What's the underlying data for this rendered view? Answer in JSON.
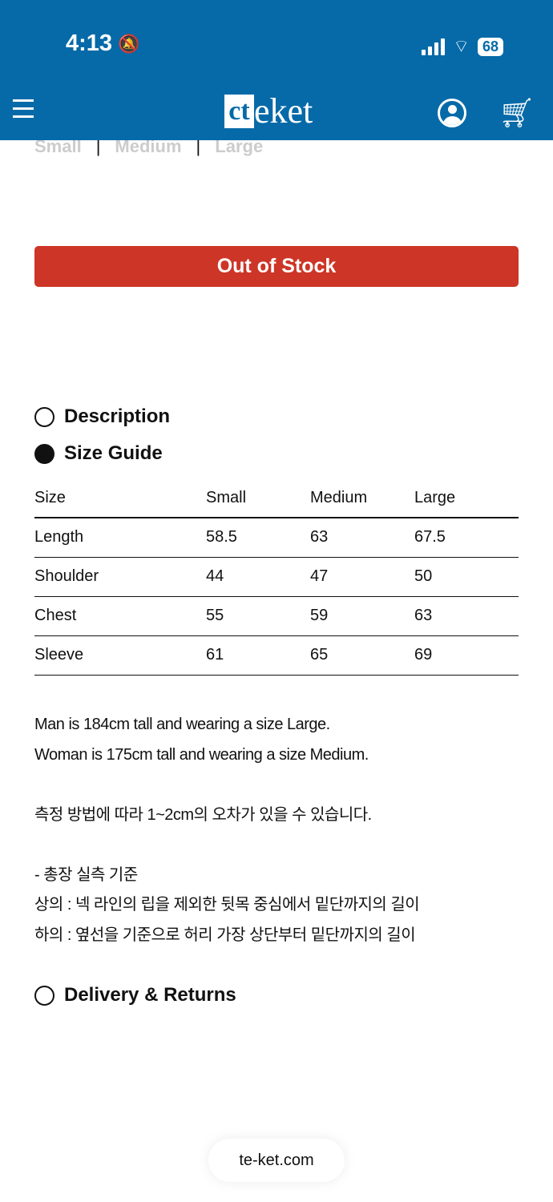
{
  "status_bar": {
    "time": "4:13",
    "battery": "68"
  },
  "header": {
    "logo_mark": "ct",
    "logo_text": "eket",
    "icons": [
      "menu-icon",
      "user-icon",
      "cart-icon"
    ]
  },
  "size_options": [
    "Small",
    "Medium",
    "Large"
  ],
  "out_of_stock": "Out of Stock",
  "accordion": [
    {
      "label": "Description",
      "open": false
    },
    {
      "label": "Size Guide",
      "open": true
    },
    {
      "label": "Delivery & Returns",
      "open": false
    }
  ],
  "size_table": {
    "headers": [
      "Size",
      "Small",
      "Medium",
      "Large"
    ],
    "rows": [
      [
        "Length",
        "58.5",
        "63",
        "67.5"
      ],
      [
        "Shoulder",
        "44",
        "47",
        "50"
      ],
      [
        "Chest",
        "55",
        "59",
        "63"
      ],
      [
        "Sleeve",
        "61",
        "65",
        "69"
      ]
    ]
  },
  "notes": [
    "Man is 184cm tall and wearing a size Large.",
    "Woman is 175cm tall and wearing a size Medium.",
    "",
    "측정 방법에 따라 1~2cm의 오차가 있을 수 있습니다.",
    "",
    "- 총장 실측 기준",
    "상의 : 넥 라인의 립을 제외한 뒷목 중심에서 밑단까지의 길이",
    "하의 : 옆선을 기준으로 허리 가장 상단부터 밑단까지의 길이"
  ],
  "footer_url": "te-ket.com",
  "colors": {
    "header": "#066aa8",
    "out_of_stock": "#cd3526"
  }
}
